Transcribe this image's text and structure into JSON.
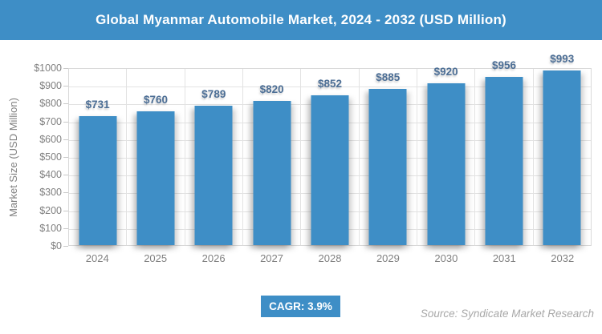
{
  "header": {
    "title": "Global Myanmar Automobile Market, 2024 - 2032 (USD Million)"
  },
  "chart_data": {
    "type": "bar",
    "title": "Global Myanmar Automobile Market, 2024 - 2032 (USD Million)",
    "categories": [
      "2024",
      "2025",
      "2026",
      "2027",
      "2028",
      "2029",
      "2030",
      "2031",
      "2032"
    ],
    "values": [
      731,
      760,
      789,
      820,
      852,
      885,
      920,
      956,
      993
    ],
    "value_labels": [
      "$731",
      "$760",
      "$789",
      "$820",
      "$852",
      "$885",
      "$920",
      "$956",
      "$993"
    ],
    "xlabel": "",
    "ylabel": "Market Size (USD Million)",
    "ylim": [
      0,
      1000
    ],
    "ytick_step": 100,
    "ytick_prefix": "$",
    "grid": true,
    "legend": "none",
    "bar_color": "#3E8EC6",
    "value_label_color": "#4D6F96"
  },
  "footer": {
    "cagr_label": "CAGR: 3.9%",
    "source": "Source: Syndicate Market Research"
  },
  "colors": {
    "header_bg": "#3E8EC6",
    "badge_bg": "#3E8EC6",
    "axis_text": "#808080",
    "gridline": "#E2E2E2",
    "plot_border": "#D9D9D9",
    "source_text": "#A8A8A8",
    "title_text": "#FFFFFF"
  }
}
